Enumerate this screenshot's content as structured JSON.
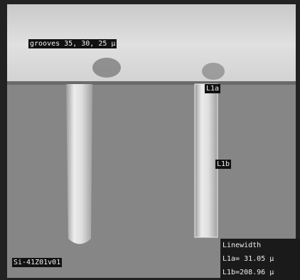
{
  "annotations": {
    "grooves": "grooves 35, 30, 25 µ",
    "l1a": "L1a",
    "l1b": "L1b",
    "sample_id": "Si-41Z01v01"
  },
  "measurement": {
    "title": "Linewidth",
    "lines": [
      "L1a= 31.05 µ",
      "L1b=208.96 µ"
    ]
  }
}
